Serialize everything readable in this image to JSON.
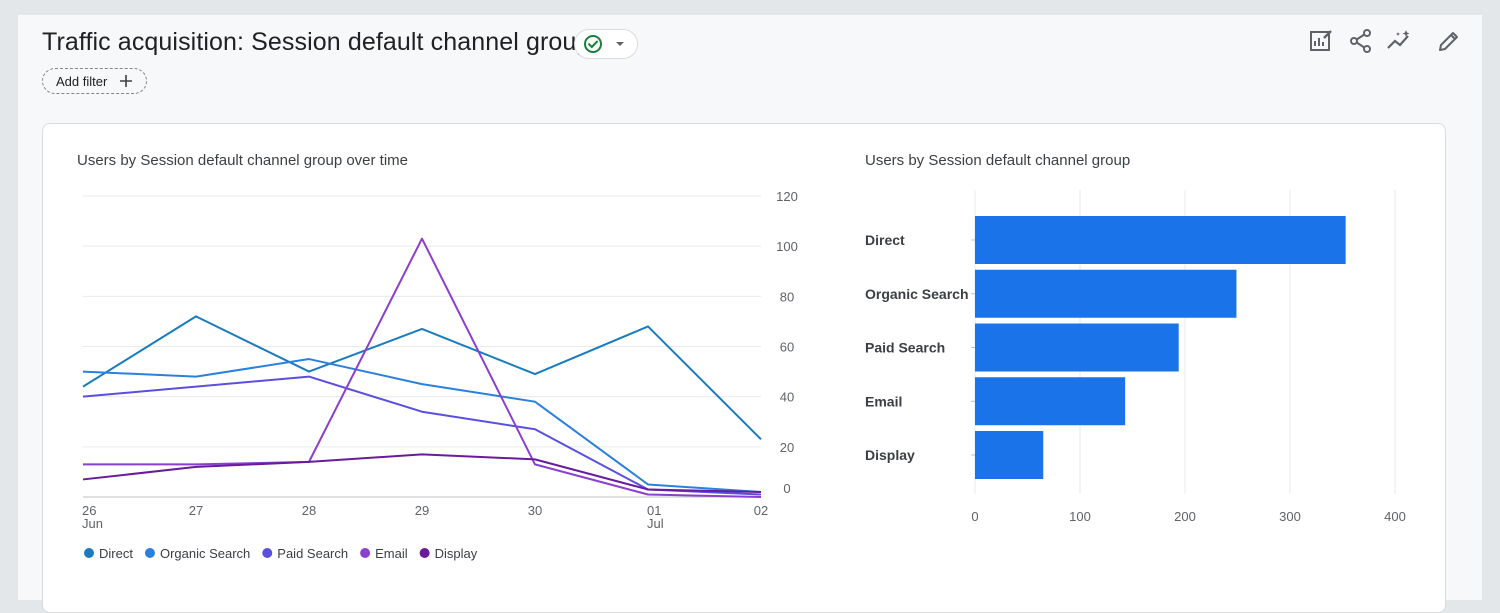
{
  "header": {
    "title": "Traffic acquisition: Session default channel group",
    "add_filter_label": "Add filter"
  },
  "toolbar": {
    "icons": [
      "edit-report-icon",
      "share-icon",
      "insights-icon",
      "customize-pencil-icon"
    ]
  },
  "colors": {
    "accent": "#1a73e8",
    "status_green": "#188038"
  },
  "line_chart": {
    "title": "Users by Session default channel group over time"
  },
  "bar_chart": {
    "title": "Users by Session default channel group"
  },
  "chart_data": [
    {
      "type": "line",
      "title": "Users by Session default channel group over time",
      "x": [
        "26 Jun",
        "27",
        "28",
        "29",
        "30",
        "01 Jul",
        "02"
      ],
      "x_tick_labels": [
        [
          "26",
          "Jun"
        ],
        [
          "27",
          ""
        ],
        [
          "28",
          ""
        ],
        [
          "29",
          ""
        ],
        [
          "30",
          ""
        ],
        [
          "01",
          "Jul"
        ],
        [
          "02",
          ""
        ]
      ],
      "y_ticks": [
        0,
        20,
        40,
        60,
        80,
        100,
        120
      ],
      "ylim": [
        0,
        120
      ],
      "y_axis_position": "right",
      "grid": true,
      "legend_position": "bottom-left",
      "series": [
        {
          "name": "Direct",
          "color": "#1a7cbf",
          "values": [
            44,
            72,
            50,
            67,
            49,
            68,
            23
          ]
        },
        {
          "name": "Organic Search",
          "color": "#2a80de",
          "values": [
            50,
            48,
            55,
            45,
            38,
            5,
            2
          ]
        },
        {
          "name": "Paid Search",
          "color": "#5a4fe0",
          "values": [
            40,
            44,
            48,
            34,
            27,
            3,
            1
          ]
        },
        {
          "name": "Email",
          "color": "#8b3fcf",
          "values": [
            13,
            13,
            14,
            103,
            13,
            1,
            0
          ]
        },
        {
          "name": "Display",
          "color": "#6a1b9a",
          "values": [
            7,
            12,
            14,
            17,
            15,
            3,
            2
          ]
        }
      ]
    },
    {
      "type": "bar",
      "orientation": "horizontal",
      "title": "Users by Session default channel group",
      "categories": [
        "Direct",
        "Organic Search",
        "Paid Search",
        "Email",
        "Display"
      ],
      "values": [
        353,
        249,
        194,
        143,
        65
      ],
      "x_ticks": [
        0,
        100,
        200,
        300,
        400
      ],
      "xlim": [
        0,
        400
      ],
      "grid": true,
      "color": "#1a73e8"
    }
  ]
}
